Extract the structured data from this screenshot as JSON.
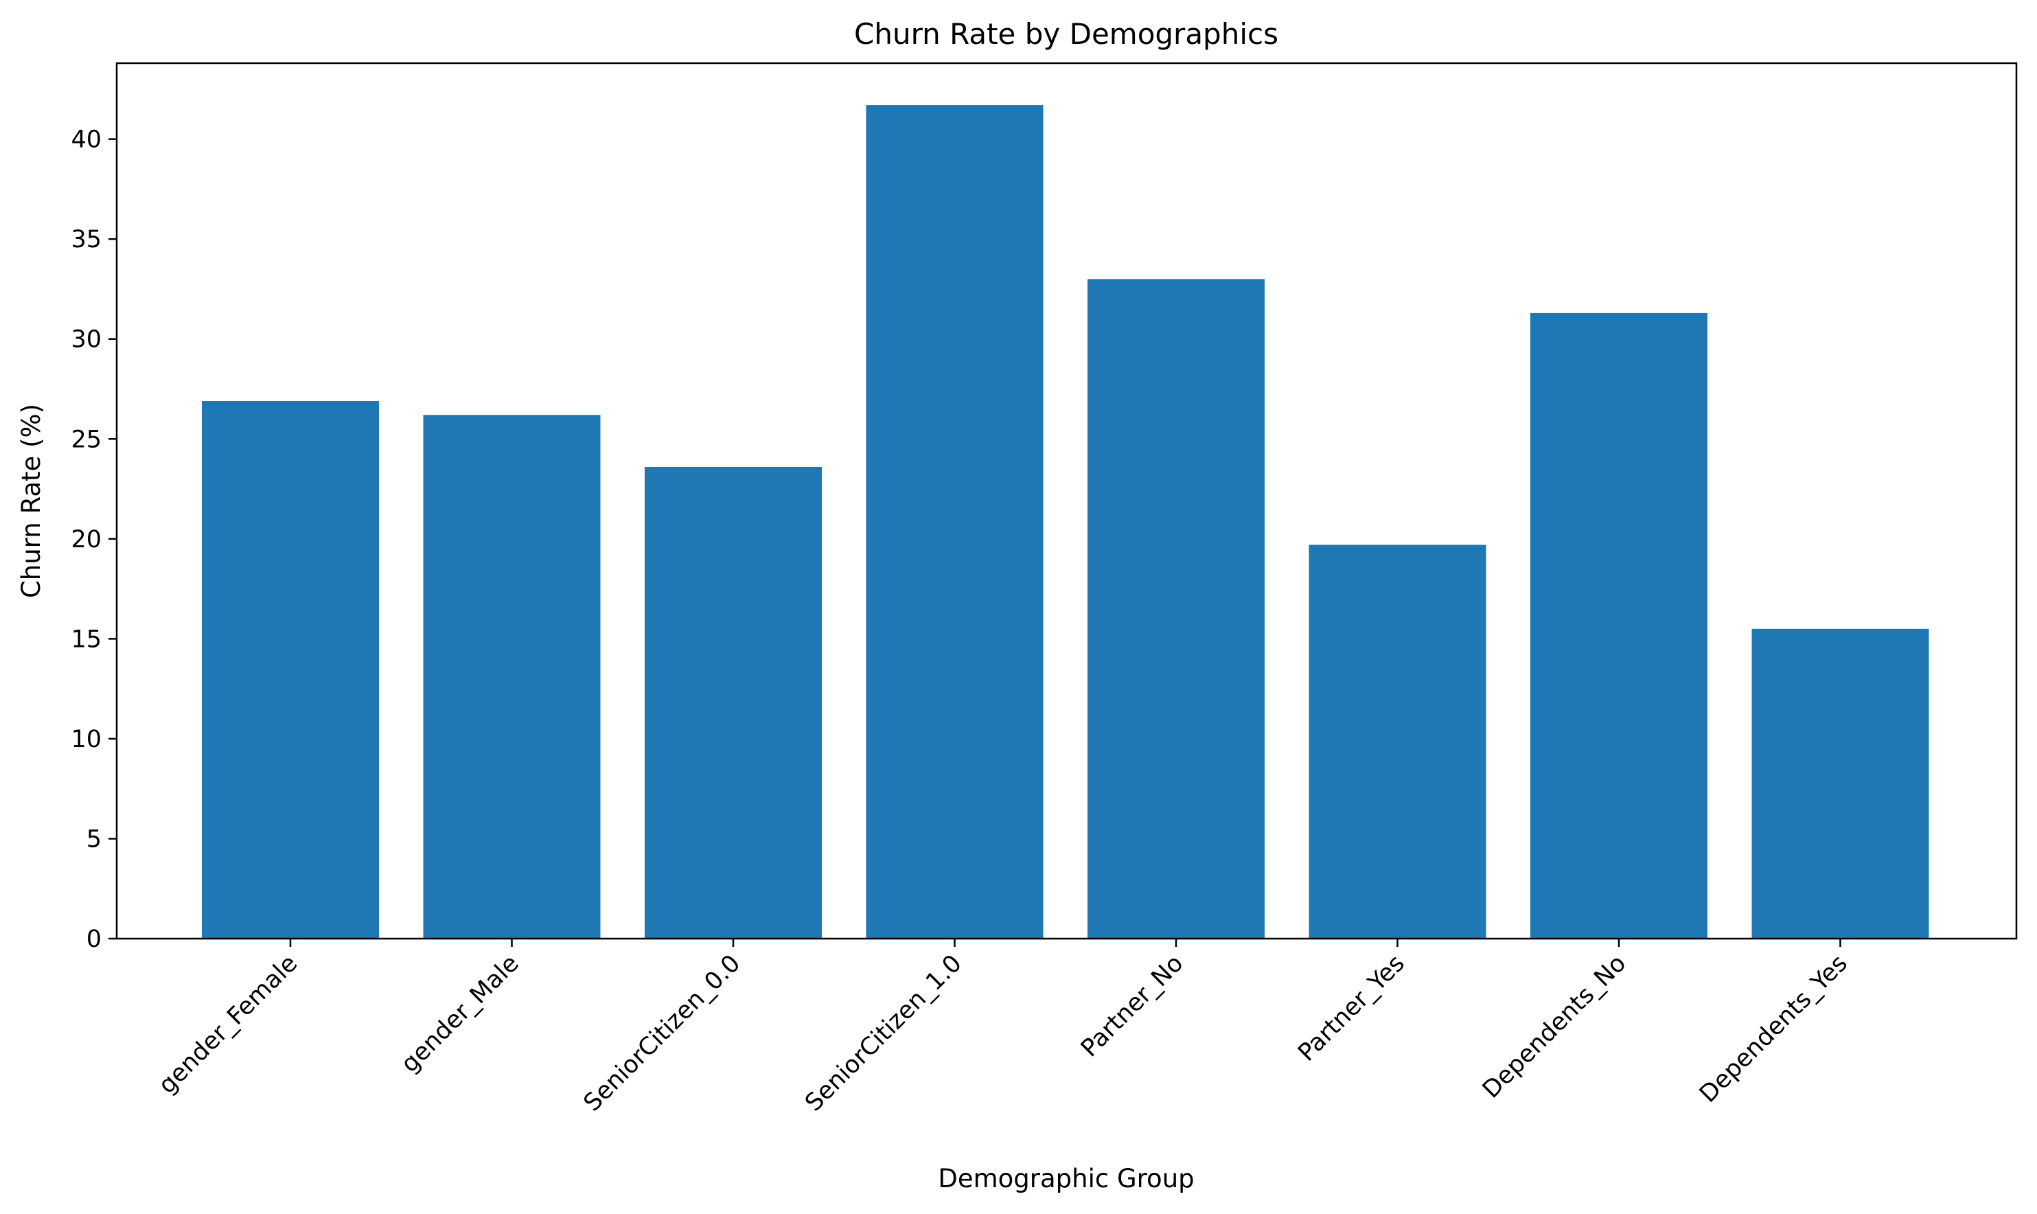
{
  "chart_data": {
    "type": "bar",
    "title": "Churn Rate by Demographics",
    "xlabel": "Demographic Group",
    "ylabel": "Churn Rate (%)",
    "categories": [
      "gender_Female",
      "gender_Male",
      "SeniorCitizen_0.0",
      "SeniorCitizen_1.0",
      "Partner_No",
      "Partner_Yes",
      "Dependents_No",
      "Dependents_Yes"
    ],
    "values": [
      26.9,
      26.2,
      23.6,
      41.7,
      33.0,
      19.7,
      31.3,
      15.5
    ],
    "ylim": [
      0,
      43.8
    ],
    "yticks": [
      0,
      5,
      10,
      15,
      20,
      25,
      30,
      35,
      40
    ],
    "bar_color": "#1f77b4",
    "grid": false
  }
}
